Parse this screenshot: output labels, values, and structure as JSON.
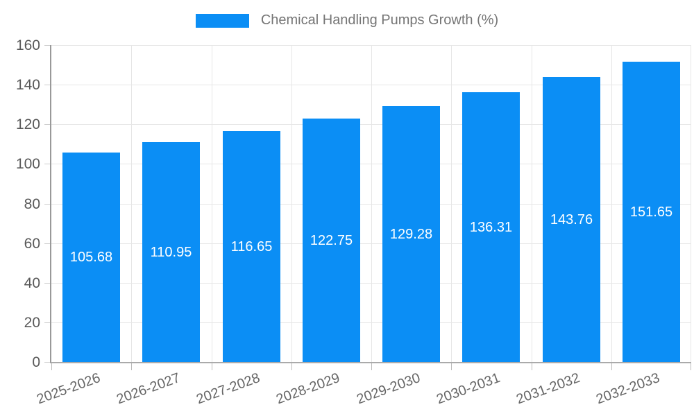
{
  "chart_data": {
    "type": "bar",
    "title": "Chemical Handling Pumps Growth (%)",
    "legend": {
      "position": "top-center",
      "entries": [
        {
          "label": "Chemical Handling Pumps Growth (%)",
          "color": "#0b8ef5"
        }
      ]
    },
    "categories": [
      "2025-2026",
      "2026-2027",
      "2027-2028",
      "2028-2029",
      "2029-2030",
      "2030-2031",
      "2031-2032",
      "2032-2033"
    ],
    "series": [
      {
        "name": "Chemical Handling Pumps Growth (%)",
        "values": [
          105.68,
          110.95,
          116.65,
          122.75,
          129.28,
          136.31,
          143.76,
          151.65
        ]
      }
    ],
    "value_labels": [
      "105.68",
      "110.95",
      "116.65",
      "122.75",
      "129.28",
      "136.31",
      "143.76",
      "151.65"
    ],
    "value_label_position": "inside-middle",
    "xlabel": "",
    "ylabel": "",
    "ylim": [
      0,
      160
    ],
    "ytick_step": 20,
    "ytick_labels": [
      "0",
      "20",
      "40",
      "60",
      "80",
      "100",
      "120",
      "140",
      "160"
    ],
    "grid": "on",
    "x_label_rotation_deg": -20
  },
  "colors": {
    "bar": "#0b8ef5",
    "bar_value_text": "#ffffff",
    "legend_text": "#757575",
    "axis_tick_text": "#595959",
    "x_tick_text": "#666666",
    "gridline": "#e6e6e6",
    "y_axis_line": "#999999",
    "x_axis_line": "#aaaaaa"
  }
}
